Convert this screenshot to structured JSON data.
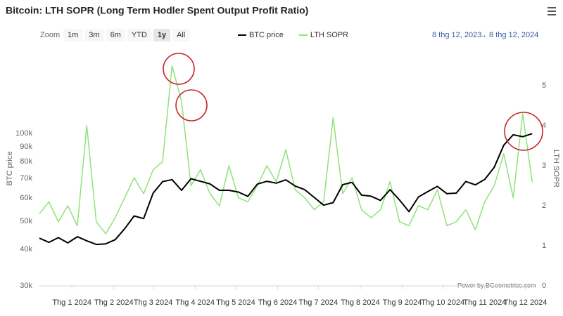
{
  "chart_data": {
    "type": "line",
    "title": "Bitcoin: LTH SOPR (Long Term Hodler Spent Output Profit Ratio)",
    "range_selector": {
      "label": "Zoom",
      "buttons": [
        "1m",
        "3m",
        "6m",
        "YTD",
        "1y",
        "All"
      ],
      "selected": 4
    },
    "date_range": {
      "from": "8 thg 12, 2023",
      "arrow": "→",
      "to": "8 thg 12, 2024"
    },
    "credits": "Power by BGeometrics.com",
    "ylabel": "BTC price",
    "y2label": "LTH SOPR",
    "yscale": "log",
    "grid": false,
    "legend": "top",
    "x": [
      "2023-12-08",
      "2023-12-15",
      "2023-12-22",
      "2023-12-29",
      "2024-01-05",
      "2024-01-12",
      "2024-01-19",
      "2024-01-26",
      "2024-02-02",
      "2024-02-09",
      "2024-02-16",
      "2024-02-23",
      "2024-03-01",
      "2024-03-08",
      "2024-03-15",
      "2024-03-22",
      "2024-03-29",
      "2024-04-05",
      "2024-04-12",
      "2024-04-19",
      "2024-04-26",
      "2024-05-03",
      "2024-05-10",
      "2024-05-17",
      "2024-05-24",
      "2024-05-31",
      "2024-06-07",
      "2024-06-14",
      "2024-06-21",
      "2024-06-28",
      "2024-07-05",
      "2024-07-12",
      "2024-07-19",
      "2024-07-26",
      "2024-08-02",
      "2024-08-09",
      "2024-08-16",
      "2024-08-23",
      "2024-08-30",
      "2024-09-06",
      "2024-09-13",
      "2024-09-20",
      "2024-09-27",
      "2024-10-04",
      "2024-10-11",
      "2024-10-18",
      "2024-10-25",
      "2024-11-01",
      "2024-11-08",
      "2024-11-15",
      "2024-11-22",
      "2024-11-29",
      "2024-12-06"
    ],
    "xlim": [
      "2023-12-08",
      "2024-12-08"
    ],
    "xticks": [
      {
        "value": "2024-01-01",
        "label": "Thg 1 2024"
      },
      {
        "value": "2024-02-01",
        "label": "Thg 2 2024"
      },
      {
        "value": "2024-03-01",
        "label": "Thg 3 2024"
      },
      {
        "value": "2024-04-01",
        "label": "Thg 4 2024"
      },
      {
        "value": "2024-05-01",
        "label": "Thg 5 2024"
      },
      {
        "value": "2024-06-01",
        "label": "Thg 6 2024"
      },
      {
        "value": "2024-07-01",
        "label": "Thg 7 2024"
      },
      {
        "value": "2024-08-01",
        "label": "Thg 8 2024"
      },
      {
        "value": "2024-09-01",
        "label": "Thg 9 2024"
      },
      {
        "value": "2024-10-01",
        "label": "Thg 10 2024"
      },
      {
        "value": "2024-11-01",
        "label": "Thg 11 2024"
      },
      {
        "value": "2024-12-01",
        "label": "Thg 12 2024"
      }
    ],
    "ylim": [
      30000,
      200000
    ],
    "yticks": [
      {
        "value": 30000,
        "label": "30k"
      },
      {
        "value": 40000,
        "label": "40k"
      },
      {
        "value": 50000,
        "label": "50k"
      },
      {
        "value": 60000,
        "label": "60k"
      },
      {
        "value": 70000,
        "label": "70k"
      },
      {
        "value": 80000,
        "label": "80k"
      },
      {
        "value": 90000,
        "label": "90k"
      },
      {
        "value": 100000,
        "label": "100k"
      }
    ],
    "y2lim": [
      0,
      6
    ],
    "y2ticks": [
      0,
      1,
      2,
      3,
      4,
      5
    ],
    "series": [
      {
        "name": "BTC price",
        "color": "#000000",
        "axis": "y",
        "values": [
          43700,
          42300,
          43900,
          42100,
          44200,
          42800,
          41600,
          41800,
          43200,
          47100,
          52100,
          51000,
          62400,
          68300,
          69400,
          63800,
          69900,
          68500,
          67100,
          63800,
          63800,
          62900,
          60800,
          67000,
          68500,
          67500,
          69300,
          66000,
          64100,
          60300,
          56700,
          57900,
          66700,
          67900,
          61400,
          60900,
          58900,
          64100,
          59100,
          53900,
          60500,
          63200,
          65800,
          62100,
          62400,
          68400,
          66600,
          69500,
          76500,
          91100,
          98900,
          97400,
          99800
        ]
      },
      {
        "name": "LTH SOPR",
        "color": "#8fe27a",
        "axis": "y2",
        "values": [
          1.8,
          2.1,
          1.6,
          2.0,
          1.5,
          4.0,
          1.6,
          1.3,
          1.7,
          2.2,
          2.7,
          2.3,
          2.9,
          3.1,
          5.5,
          4.6,
          2.5,
          2.9,
          2.3,
          2.0,
          3.0,
          2.2,
          2.1,
          2.5,
          3.0,
          2.6,
          3.4,
          2.4,
          2.2,
          1.9,
          2.1,
          4.2,
          2.3,
          2.7,
          1.9,
          1.7,
          1.9,
          2.6,
          1.6,
          1.5,
          2.0,
          1.9,
          2.4,
          1.5,
          1.6,
          1.9,
          1.4,
          2.1,
          2.5,
          3.3,
          2.2,
          4.3,
          2.6
        ]
      }
    ]
  }
}
